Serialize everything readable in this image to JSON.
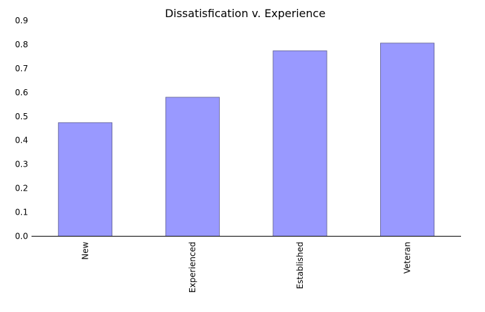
{
  "chart_data": {
    "type": "bar",
    "title": "Dissatisfication v. Experience",
    "xlabel": "",
    "ylabel": "",
    "categories": [
      "New",
      "Experienced",
      "Established",
      "Veteran"
    ],
    "values": [
      0.474,
      0.58,
      0.774,
      0.806
    ],
    "ylim": [
      0,
      0.9
    ],
    "yticks": [
      "0.0",
      "0.1",
      "0.2",
      "0.3",
      "0.4",
      "0.5",
      "0.6",
      "0.7",
      "0.8",
      "0.9"
    ],
    "grid": false,
    "legend": "none",
    "bar_color": "#9999ff",
    "bar_edge_color": "#5a5a8a"
  }
}
